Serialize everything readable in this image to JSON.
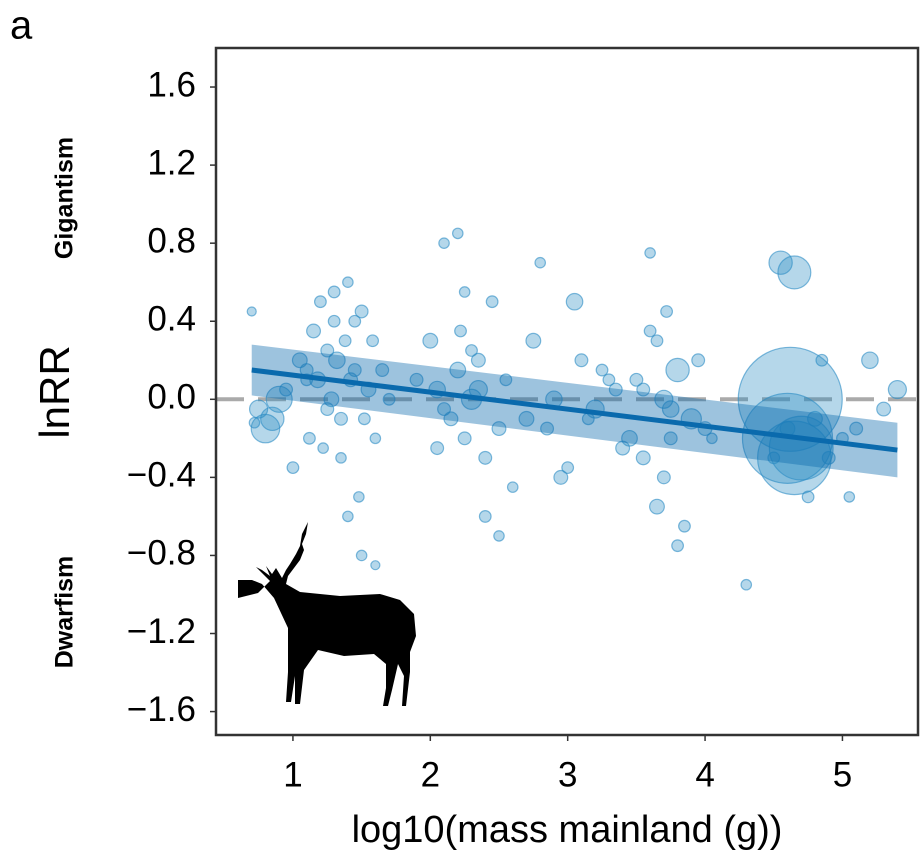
{
  "chart_data": {
    "type": "scatter",
    "panel_label": "a",
    "xlabel": "log10(mass mainland (g))",
    "ylabel": "lnRR",
    "annotations": [
      "Gigantism",
      "Dwarfism"
    ],
    "xlim": [
      0.44,
      5.55
    ],
    "ylim": [
      -1.72,
      1.8
    ],
    "xticks": [
      1,
      2,
      3,
      4,
      5
    ],
    "yticks": [
      1.6,
      1.2,
      0.8,
      0.4,
      {
        "value": 0,
        "label": "0.0"
      },
      {
        "value": -0.4,
        "label": "−0.4"
      },
      {
        "value": -0.8,
        "label": "−0.8"
      },
      {
        "value": -1.2,
        "label": "−1.2"
      },
      {
        "value": -1.6,
        "label": "−1.6"
      }
    ],
    "reference_line": 0,
    "series": [
      {
        "color": "#2b8cc4",
        "x": [
          0.7,
          0.75,
          0.8,
          0.85,
          0.9,
          0.72,
          0.95,
          1.0,
          1.05,
          1.1,
          1.12,
          1.15,
          1.18,
          1.2,
          1.22,
          1.25,
          1.28,
          1.3,
          1.32,
          1.35,
          1.38,
          1.4,
          1.42,
          1.45,
          1.48,
          1.5,
          1.52,
          1.55,
          1.58,
          1.6,
          1.65,
          1.7,
          1.35,
          1.4,
          1.3,
          1.25,
          1.45,
          1.5,
          1.1,
          1.6,
          1.9,
          2.0,
          2.05,
          2.1,
          2.15,
          2.2,
          2.22,
          2.25,
          2.3,
          2.35,
          2.4,
          2.45,
          2.5,
          2.55,
          2.6,
          2.2,
          2.3,
          2.1,
          2.25,
          2.4,
          2.05,
          2.35,
          2.5,
          2.7,
          2.8,
          2.9,
          3.0,
          3.1,
          3.2,
          3.3,
          3.4,
          2.75,
          2.85,
          3.05,
          3.15,
          3.35,
          2.95,
          3.25,
          3.45,
          3.5,
          3.55,
          3.6,
          3.65,
          3.7,
          3.72,
          3.75,
          3.8,
          3.85,
          3.9,
          3.95,
          4.0,
          3.6,
          3.7,
          3.65,
          3.75,
          3.8,
          3.55,
          4.05,
          4.3,
          4.5,
          4.55,
          4.6,
          4.62,
          4.65,
          4.7,
          4.75,
          4.8,
          4.9,
          5.0,
          5.1,
          5.2,
          5.3,
          5.4,
          4.65,
          4.6,
          4.85,
          5.05
        ],
        "values": [
          0.45,
          -0.05,
          -0.15,
          -0.1,
          0.0,
          -0.12,
          0.05,
          -0.35,
          0.2,
          0.15,
          -0.2,
          0.35,
          0.1,
          0.5,
          -0.25,
          0.25,
          0.0,
          0.4,
          0.2,
          -0.1,
          0.3,
          0.6,
          0.1,
          0.15,
          -0.5,
          0.45,
          -0.1,
          0.05,
          0.3,
          -0.2,
          0.15,
          0.0,
          -0.3,
          -0.6,
          0.55,
          -0.05,
          0.4,
          -0.8,
          0.1,
          -0.85,
          0.1,
          0.3,
          0.05,
          0.8,
          -0.1,
          0.15,
          0.35,
          -0.2,
          0.25,
          0.05,
          -0.3,
          0.5,
          -0.15,
          0.1,
          -0.45,
          0.85,
          0.0,
          -0.05,
          0.55,
          -0.6,
          -0.25,
          0.2,
          -0.7,
          -0.1,
          0.7,
          0.0,
          -0.35,
          0.2,
          -0.05,
          0.1,
          -0.25,
          0.3,
          -0.15,
          0.5,
          -0.1,
          0.05,
          -0.4,
          0.15,
          -0.2,
          0.1,
          -0.3,
          0.35,
          -0.55,
          0.0,
          0.45,
          -0.2,
          0.15,
          -0.65,
          -0.1,
          0.2,
          -0.15,
          0.75,
          -0.4,
          0.3,
          -0.05,
          -0.75,
          0.05,
          -0.2,
          -0.95,
          -0.3,
          0.7,
          -0.2,
          0.0,
          0.65,
          -0.25,
          -0.5,
          -0.1,
          -0.3,
          -0.2,
          -0.15,
          0.2,
          -0.05,
          0.05,
          -0.3,
          -0.15,
          0.2,
          -0.5
        ],
        "sizes": [
          3,
          12,
          30,
          20,
          25,
          4,
          6,
          5,
          8,
          6,
          5,
          7,
          9,
          5,
          4,
          6,
          8,
          5,
          10,
          6,
          5,
          4,
          7,
          6,
          4,
          6,
          5,
          8,
          5,
          4,
          6,
          5,
          4,
          4,
          5,
          6,
          5,
          4,
          5,
          3,
          6,
          8,
          10,
          4,
          7,
          9,
          5,
          6,
          5,
          12,
          6,
          5,
          7,
          5,
          4,
          4,
          15,
          6,
          4,
          5,
          6,
          7,
          4,
          8,
          4,
          10,
          5,
          6,
          12,
          5,
          7,
          8,
          6,
          10,
          5,
          6,
          7,
          5,
          9,
          6,
          7,
          5,
          8,
          12,
          5,
          6,
          20,
          5,
          15,
          6,
          7,
          4,
          6,
          5,
          10,
          5,
          6,
          4,
          4,
          5,
          20,
          300,
          400,
          40,
          150,
          5,
          8,
          6,
          5,
          6,
          10,
          7,
          12,
          200,
          8,
          5,
          4
        ]
      }
    ],
    "fit": {
      "color": "#0a6aad",
      "x": [
        0.7,
        5.4
      ],
      "y": [
        0.15,
        -0.26
      ],
      "lower": [
        0.02,
        -0.4
      ],
      "upper": [
        0.28,
        -0.12
      ]
    }
  }
}
